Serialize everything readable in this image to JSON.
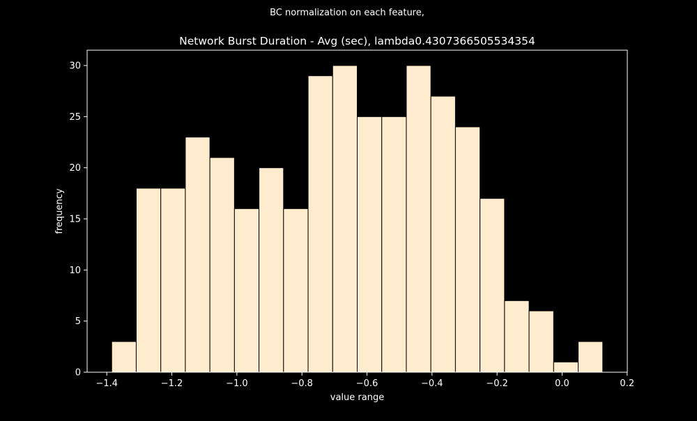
{
  "suptitle": "BC normalization on each feature,",
  "chart_data": {
    "type": "bar",
    "title": "Network Burst Duration - Avg (sec), lambda0.4307366505534354",
    "xlabel": "value range",
    "ylabel": "frequency",
    "bin_edges": [
      -1.385,
      -1.3095,
      -1.234,
      -1.1585,
      -1.083,
      -1.0075,
      -0.932,
      -0.8565,
      -0.781,
      -0.7055,
      -0.63,
      -0.5545,
      -0.479,
      -0.4035,
      -0.328,
      -0.2525,
      -0.177,
      -0.1015,
      -0.026,
      0.0495,
      0.125
    ],
    "values": [
      3,
      18,
      18,
      23,
      21,
      16,
      20,
      16,
      29,
      30,
      25,
      25,
      30,
      27,
      24,
      17,
      7,
      6,
      1,
      3
    ],
    "xlim": [
      -1.4605,
      0.2005
    ],
    "ylim": [
      0,
      31.5
    ],
    "xticks": [
      -1.4,
      -1.2,
      -1.0,
      -0.8,
      -0.6,
      -0.4,
      -0.2,
      0.0,
      0.2
    ],
    "xtick_labels": [
      "−1.4",
      "−1.2",
      "−1.0",
      "−0.8",
      "−0.6",
      "−0.4",
      "−0.2",
      "0.0",
      "0.2"
    ],
    "yticks": [
      0,
      5,
      10,
      15,
      20,
      25,
      30
    ],
    "ytick_labels": [
      "0",
      "5",
      "10",
      "15",
      "20",
      "25",
      "30"
    ],
    "grid": false,
    "legend": "none",
    "colors": {
      "background": "#000000",
      "bar_fill": "#ffebcd",
      "bar_edge": "#000000",
      "axes": "#ffffff",
      "text": "#ffffff"
    }
  }
}
